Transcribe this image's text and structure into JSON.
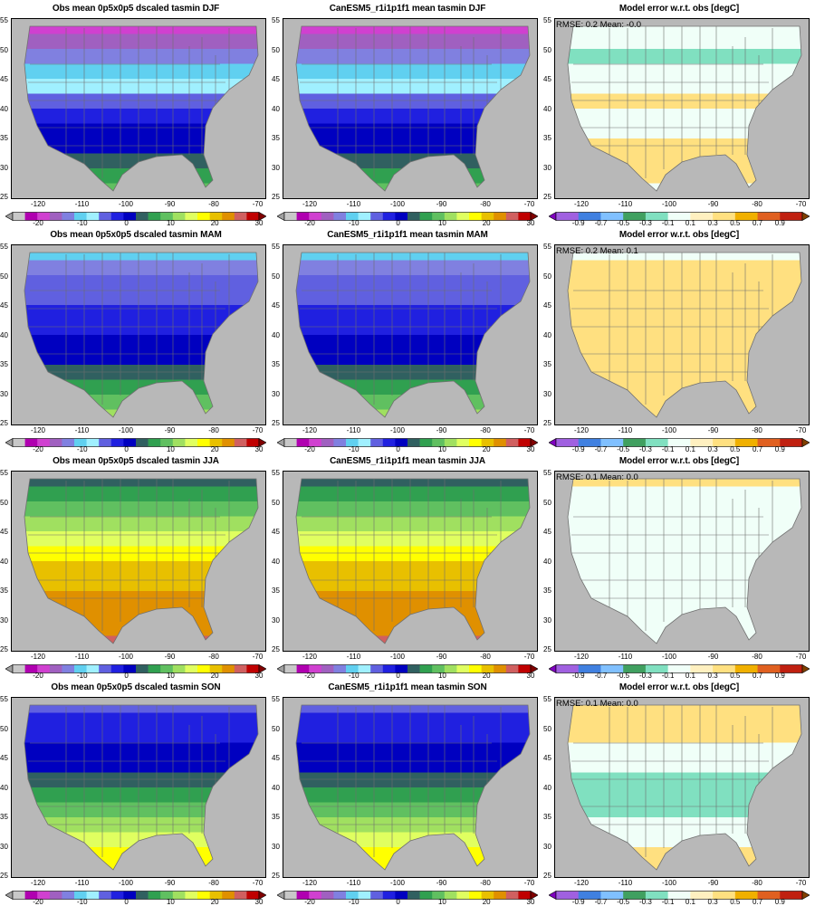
{
  "colors": {
    "abs_scale": [
      "#a0a0a0",
      "#c8c8c8",
      "#b000b0",
      "#d040d0",
      "#a060c0",
      "#8080e0",
      "#60d0f0",
      "#a0f0ff",
      "#6060e0",
      "#2020e0",
      "#0000c0",
      "#306060",
      "#30a050",
      "#60c060",
      "#a0e060",
      "#e0ff60",
      "#ffff00",
      "#e8c000",
      "#e09000",
      "#d06060",
      "#c00000",
      "#800000"
    ],
    "err_scale": [
      "#8000c0",
      "#a060e0",
      "#4080e0",
      "#80c0ff",
      "#40a060",
      "#80e0c0",
      "#f0fff8",
      "#fff0c0",
      "#ffe080",
      "#f0b000",
      "#e06020",
      "#c02010",
      "#804000"
    ],
    "state_lines": "#6e6e6e",
    "background": "#b8b8b8"
  },
  "axes": {
    "y_ticks": [
      "55",
      "50",
      "45",
      "40",
      "35",
      "30",
      "25"
    ],
    "x_ticks": [
      "-120",
      "-110",
      "-100",
      "-90",
      "-80",
      "-70"
    ],
    "abs_colorbar_ticks": [
      "-20",
      "-10",
      "0",
      "10",
      "20",
      "30"
    ],
    "err_colorbar_ticks": [
      "-0.9",
      "-0.7",
      "-0.5",
      "-0.3",
      "-0.1",
      "0.1",
      "0.3",
      "0.5",
      "0.7",
      "0.9"
    ]
  },
  "rows": [
    {
      "season": "DJF",
      "obs_title": "Obs mean 0p5x0p5 dscaled tasmin DJF",
      "model_title": "CanESM5_r1i1p1f1 mean tasmin DJF",
      "err_title": "Model error w.r.t. obs [degC]",
      "stats": "RMSE: 0.2   Mean: -0.0",
      "bands": [
        3,
        4,
        5,
        6,
        7,
        8,
        9,
        10,
        10,
        11,
        12,
        13
      ],
      "err_bands": [
        6,
        6,
        5,
        6,
        6,
        8,
        6,
        6,
        8,
        8,
        8,
        6
      ]
    },
    {
      "season": "MAM",
      "obs_title": "Obs mean 0p5x0p5 dscaled tasmin MAM",
      "model_title": "CanESM5_r1i1p1f1 mean tasmin MAM",
      "err_title": "Model error w.r.t. obs [degC]",
      "stats": "RMSE: 0.2   Mean: 0.1",
      "bands": [
        6,
        5,
        8,
        8,
        9,
        9,
        10,
        10,
        11,
        12,
        13,
        14
      ],
      "err_bands": [
        6,
        8,
        8,
        8,
        8,
        8,
        8,
        8,
        8,
        8,
        8,
        8
      ]
    },
    {
      "season": "JJA",
      "obs_title": "Obs mean 0p5x0p5 dscaled tasmin JJA",
      "model_title": "CanESM5_r1i1p1f1 mean tasmin JJA",
      "err_title": "Model error w.r.t. obs [degC]",
      "stats": "RMSE: 0.1   Mean: 0.0",
      "bands": [
        11,
        12,
        13,
        14,
        15,
        16,
        17,
        17,
        18,
        18,
        18,
        19
      ],
      "err_bands": [
        8,
        6,
        6,
        6,
        6,
        6,
        6,
        6,
        6,
        6,
        6,
        6
      ]
    },
    {
      "season": "SON",
      "obs_title": "Obs mean 0p5x0p5 dscaled tasmin SON",
      "model_title": "CanESM5_r1i1p1f1 mean tasmin SON",
      "err_title": "Model error w.r.t. obs [degC]",
      "stats": "RMSE: 0.1   Mean: 0.0",
      "bands": [
        8,
        9,
        9,
        10,
        10,
        11,
        12,
        13,
        14,
        15,
        16,
        16
      ],
      "err_bands": [
        8,
        8,
        8,
        6,
        6,
        5,
        5,
        5,
        6,
        6,
        8,
        8
      ]
    }
  ]
}
